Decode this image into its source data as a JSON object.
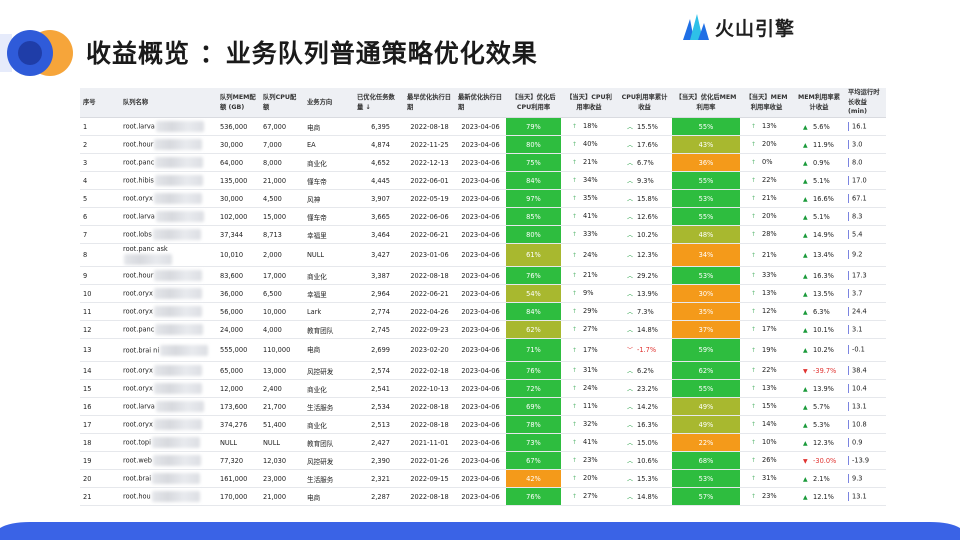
{
  "header": {
    "title": "收益概览 ：业务队列普通策略优化效果",
    "logo_text": "火山引擎"
  },
  "colors": {
    "green": "#2ebd3f",
    "yellow_green": "#a8b82f",
    "orange": "#f49a1a",
    "arrow_up": "#1a9a3a",
    "arrow_down": "#e0322f",
    "accent_blue": "#2f5bd9"
  },
  "table": {
    "headers": {
      "seq": "序号",
      "name": "队列名称",
      "mem": "队列MEM配额 (GB)",
      "cpu": "队列CPU配额",
      "biz": "业务方向",
      "count": "已优化任务数量",
      "latest": "最早优化执行日期",
      "newest": "最新优化执行日期",
      "cpu_util": "【当天】优化后CPU利用率",
      "cpu_gain": "【当天】CPU利用率收益",
      "cpu_cum": "CPU利用率累计收益",
      "mem_util": "【当天】优化后MEM利用率",
      "mem_gain": "【当天】MEM利用率收益",
      "mem_cum": "MEM利用率累计收益",
      "avg_time": "平均运行时长收益 (min)"
    },
    "sort_icon": "↓",
    "rows": [
      {
        "seq": "1",
        "name": "root.larva",
        "mem": "536,000",
        "cpu": "67,000",
        "biz": "电商",
        "count": "6,395",
        "d1": "2022-08-18",
        "d2": "2023-04-06",
        "cpu_util": "79%",
        "cpu_color": "green",
        "cpu_gain": "18%",
        "cpu_cum": "15.5%",
        "cpu_cum_dir": "up",
        "mem_util": "55%",
        "mem_color": "green",
        "mem_gain": "13%",
        "mem_cum": "5.6%",
        "mem_cum_dir": "up",
        "avg": "16.1"
      },
      {
        "seq": "2",
        "name": "root.hour",
        "mem": "30,000",
        "cpu": "7,000",
        "biz": "EA",
        "count": "4,874",
        "d1": "2022-11-25",
        "d2": "2023-04-06",
        "cpu_util": "80%",
        "cpu_color": "green",
        "cpu_gain": "40%",
        "cpu_cum": "17.6%",
        "cpu_cum_dir": "up",
        "mem_util": "43%",
        "mem_color": "yellow_green",
        "mem_gain": "20%",
        "mem_cum": "11.9%",
        "mem_cum_dir": "up",
        "avg": "3.0"
      },
      {
        "seq": "3",
        "name": "root.panc",
        "mem": "64,000",
        "cpu": "8,000",
        "biz": "商业化",
        "count": "4,652",
        "d1": "2022-12-13",
        "d2": "2023-04-06",
        "cpu_util": "75%",
        "cpu_color": "green",
        "cpu_gain": "21%",
        "cpu_cum": "6.7%",
        "cpu_cum_dir": "up",
        "mem_util": "36%",
        "mem_color": "orange",
        "mem_gain": "0%",
        "mem_cum": "0.9%",
        "mem_cum_dir": "up",
        "avg": "8.0"
      },
      {
        "seq": "4",
        "name": "root.hibis",
        "mem": "135,000",
        "cpu": "21,000",
        "biz": "懂车帝",
        "count": "4,445",
        "d1": "2022-06-01",
        "d2": "2023-04-06",
        "cpu_util": "84%",
        "cpu_color": "green",
        "cpu_gain": "34%",
        "cpu_cum": "9.3%",
        "cpu_cum_dir": "up",
        "mem_util": "55%",
        "mem_color": "green",
        "mem_gain": "22%",
        "mem_cum": "5.1%",
        "mem_cum_dir": "up",
        "avg": "17.0"
      },
      {
        "seq": "5",
        "name": "root.oryx",
        "mem": "30,000",
        "cpu": "4,500",
        "biz": "风神",
        "count": "3,907",
        "d1": "2022-05-19",
        "d2": "2023-04-06",
        "cpu_util": "97%",
        "cpu_color": "green",
        "cpu_gain": "35%",
        "cpu_cum": "15.8%",
        "cpu_cum_dir": "up",
        "mem_util": "53%",
        "mem_color": "green",
        "mem_gain": "21%",
        "mem_cum": "16.6%",
        "mem_cum_dir": "up",
        "avg": "67.1"
      },
      {
        "seq": "6",
        "name": "root.larva",
        "mem": "102,000",
        "cpu": "15,000",
        "biz": "懂车帝",
        "count": "3,665",
        "d1": "2022-06-06",
        "d2": "2023-04-06",
        "cpu_util": "85%",
        "cpu_color": "green",
        "cpu_gain": "41%",
        "cpu_cum": "12.6%",
        "cpu_cum_dir": "up",
        "mem_util": "55%",
        "mem_color": "green",
        "mem_gain": "20%",
        "mem_cum": "5.1%",
        "mem_cum_dir": "up",
        "avg": "8.3"
      },
      {
        "seq": "7",
        "name": "root.lobs",
        "mem": "37,344",
        "cpu": "8,713",
        "biz": "幸福里",
        "count": "3,464",
        "d1": "2022-06-21",
        "d2": "2023-04-06",
        "cpu_util": "80%",
        "cpu_color": "green",
        "cpu_gain": "33%",
        "cpu_cum": "10.2%",
        "cpu_cum_dir": "up",
        "mem_util": "48%",
        "mem_color": "yellow_green",
        "mem_gain": "28%",
        "mem_cum": "14.9%",
        "mem_cum_dir": "up",
        "avg": "5.4"
      },
      {
        "seq": "8",
        "name": "root.panc ask",
        "mem": "10,010",
        "cpu": "2,000",
        "biz": "NULL",
        "count": "3,427",
        "d1": "2023-01-06",
        "d2": "2023-04-06",
        "cpu_util": "61%",
        "cpu_color": "yellow_green",
        "cpu_gain": "24%",
        "cpu_cum": "12.3%",
        "cpu_cum_dir": "up",
        "mem_util": "34%",
        "mem_color": "orange",
        "mem_gain": "21%",
        "mem_cum": "13.4%",
        "mem_cum_dir": "up",
        "avg": "9.2",
        "tall": true
      },
      {
        "seq": "9",
        "name": "root.hour",
        "mem": "83,600",
        "cpu": "17,000",
        "biz": "商业化",
        "count": "3,387",
        "d1": "2022-08-18",
        "d2": "2023-04-06",
        "cpu_util": "76%",
        "cpu_color": "green",
        "cpu_gain": "21%",
        "cpu_cum": "29.2%",
        "cpu_cum_dir": "up",
        "mem_util": "53%",
        "mem_color": "green",
        "mem_gain": "33%",
        "mem_cum": "16.3%",
        "mem_cum_dir": "up",
        "avg": "17.3"
      },
      {
        "seq": "10",
        "name": "root.oryx",
        "mem": "36,000",
        "cpu": "6,500",
        "biz": "幸福里",
        "count": "2,964",
        "d1": "2022-06-21",
        "d2": "2023-04-06",
        "cpu_util": "54%",
        "cpu_color": "yellow_green",
        "cpu_gain": "9%",
        "cpu_cum": "13.9%",
        "cpu_cum_dir": "up",
        "mem_util": "30%",
        "mem_color": "orange",
        "mem_gain": "13%",
        "mem_cum": "13.5%",
        "mem_cum_dir": "up",
        "avg": "3.7"
      },
      {
        "seq": "11",
        "name": "root.oryx",
        "mem": "56,000",
        "cpu": "10,000",
        "biz": "Lark",
        "count": "2,774",
        "d1": "2022-04-26",
        "d2": "2023-04-06",
        "cpu_util": "84%",
        "cpu_color": "green",
        "cpu_gain": "29%",
        "cpu_cum": "7.3%",
        "cpu_cum_dir": "up",
        "mem_util": "35%",
        "mem_color": "orange",
        "mem_gain": "12%",
        "mem_cum": "6.3%",
        "mem_cum_dir": "up",
        "avg": "24.4"
      },
      {
        "seq": "12",
        "name": "root.panc",
        "mem": "24,000",
        "cpu": "4,000",
        "biz": "教育团队",
        "count": "2,745",
        "d1": "2022-09-23",
        "d2": "2023-04-06",
        "cpu_util": "62%",
        "cpu_color": "yellow_green",
        "cpu_gain": "27%",
        "cpu_cum": "14.8%",
        "cpu_cum_dir": "up",
        "mem_util": "37%",
        "mem_color": "orange",
        "mem_gain": "17%",
        "mem_cum": "10.1%",
        "mem_cum_dir": "up",
        "avg": "3.1"
      },
      {
        "seq": "13",
        "name": "root.brai ni",
        "mem": "555,000",
        "cpu": "110,000",
        "biz": "电商",
        "count": "2,699",
        "d1": "2023-02-20",
        "d2": "2023-04-06",
        "cpu_util": "71%",
        "cpu_color": "green",
        "cpu_gain": "17%",
        "cpu_cum": "-1.7%",
        "cpu_cum_dir": "down",
        "mem_util": "59%",
        "mem_color": "green",
        "mem_gain": "19%",
        "mem_cum": "10.2%",
        "mem_cum_dir": "up",
        "avg": "-0.1",
        "tall": true
      },
      {
        "seq": "14",
        "name": "root.oryx",
        "mem": "65,000",
        "cpu": "13,000",
        "biz": "风控研发",
        "count": "2,574",
        "d1": "2022-02-18",
        "d2": "2023-04-06",
        "cpu_util": "76%",
        "cpu_color": "green",
        "cpu_gain": "31%",
        "cpu_cum": "6.2%",
        "cpu_cum_dir": "up",
        "mem_util": "62%",
        "mem_color": "green",
        "mem_gain": "22%",
        "mem_cum": "-39.7%",
        "mem_cum_dir": "down",
        "avg": "38.4"
      },
      {
        "seq": "15",
        "name": "root.oryx",
        "mem": "12,000",
        "cpu": "2,400",
        "biz": "商业化",
        "count": "2,541",
        "d1": "2022-10-13",
        "d2": "2023-04-06",
        "cpu_util": "72%",
        "cpu_color": "green",
        "cpu_gain": "24%",
        "cpu_cum": "23.2%",
        "cpu_cum_dir": "up",
        "mem_util": "55%",
        "mem_color": "green",
        "mem_gain": "13%",
        "mem_cum": "13.9%",
        "mem_cum_dir": "up",
        "avg": "10.4"
      },
      {
        "seq": "16",
        "name": "root.larva",
        "mem": "173,600",
        "cpu": "21,700",
        "biz": "生活服务",
        "count": "2,534",
        "d1": "2022-08-18",
        "d2": "2023-04-06",
        "cpu_util": "69%",
        "cpu_color": "green",
        "cpu_gain": "11%",
        "cpu_cum": "14.2%",
        "cpu_cum_dir": "up",
        "mem_util": "49%",
        "mem_color": "yellow_green",
        "mem_gain": "15%",
        "mem_cum": "5.7%",
        "mem_cum_dir": "up",
        "avg": "13.1"
      },
      {
        "seq": "17",
        "name": "root.oryx",
        "mem": "374,276",
        "cpu": "51,400",
        "biz": "商业化",
        "count": "2,513",
        "d1": "2022-08-18",
        "d2": "2023-04-06",
        "cpu_util": "78%",
        "cpu_color": "green",
        "cpu_gain": "32%",
        "cpu_cum": "16.3%",
        "cpu_cum_dir": "up",
        "mem_util": "49%",
        "mem_color": "yellow_green",
        "mem_gain": "14%",
        "mem_cum": "5.3%",
        "mem_cum_dir": "up",
        "avg": "10.8"
      },
      {
        "seq": "18",
        "name": "root.topi",
        "mem": "NULL",
        "cpu": "NULL",
        "biz": "教育团队",
        "count": "2,427",
        "d1": "2021-11-01",
        "d2": "2023-04-06",
        "cpu_util": "73%",
        "cpu_color": "green",
        "cpu_gain": "41%",
        "cpu_cum": "15.0%",
        "cpu_cum_dir": "up",
        "mem_util": "22%",
        "mem_color": "orange",
        "mem_gain": "10%",
        "mem_cum": "12.3%",
        "mem_cum_dir": "up",
        "avg": "0.9"
      },
      {
        "seq": "19",
        "name": "root.web",
        "mem": "77,320",
        "cpu": "12,030",
        "biz": "风控研发",
        "count": "2,390",
        "d1": "2022-01-26",
        "d2": "2023-04-06",
        "cpu_util": "67%",
        "cpu_color": "green",
        "cpu_gain": "23%",
        "cpu_cum": "10.6%",
        "cpu_cum_dir": "up",
        "mem_util": "68%",
        "mem_color": "green",
        "mem_gain": "26%",
        "mem_cum": "-30.0%",
        "mem_cum_dir": "down",
        "avg": "-13.9"
      },
      {
        "seq": "20",
        "name": "root.brai",
        "mem": "161,000",
        "cpu": "23,000",
        "biz": "生活服务",
        "count": "2,321",
        "d1": "2022-09-15",
        "d2": "2023-04-06",
        "cpu_util": "42%",
        "cpu_color": "orange",
        "cpu_gain": "20%",
        "cpu_cum": "15.3%",
        "cpu_cum_dir": "up",
        "mem_util": "53%",
        "mem_color": "green",
        "mem_gain": "31%",
        "mem_cum": "2.1%",
        "mem_cum_dir": "up",
        "avg": "9.3"
      },
      {
        "seq": "21",
        "name": "root.hou",
        "mem": "170,000",
        "cpu": "21,000",
        "biz": "电商",
        "count": "2,287",
        "d1": "2022-08-18",
        "d2": "2023-04-06",
        "cpu_util": "76%",
        "cpu_color": "green",
        "cpu_gain": "27%",
        "cpu_cum": "14.8%",
        "cpu_cum_dir": "up",
        "mem_util": "57%",
        "mem_color": "green",
        "mem_gain": "23%",
        "mem_cum": "12.1%",
        "mem_cum_dir": "up",
        "avg": "13.1"
      }
    ]
  }
}
